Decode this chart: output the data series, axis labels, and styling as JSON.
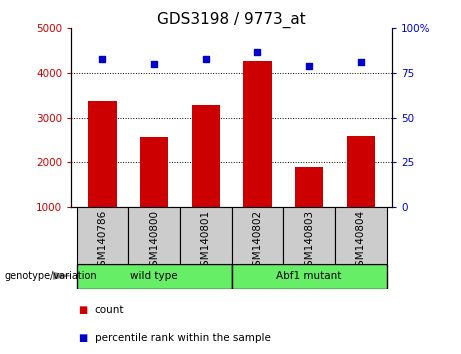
{
  "title": "GDS3198 / 9773_at",
  "categories": [
    "GSM140786",
    "GSM140800",
    "GSM140801",
    "GSM140802",
    "GSM140803",
    "GSM140804"
  ],
  "bar_values": [
    3380,
    2560,
    3280,
    4260,
    1900,
    2580
  ],
  "scatter_values": [
    83,
    80,
    83,
    87,
    79,
    81
  ],
  "bar_color": "#cc0000",
  "scatter_color": "#0000cc",
  "ylim_left": [
    1000,
    5000
  ],
  "ylim_right": [
    0,
    100
  ],
  "yticks_left": [
    1000,
    2000,
    3000,
    4000,
    5000
  ],
  "yticks_right": [
    0,
    25,
    50,
    75,
    100
  ],
  "yticklabels_right": [
    "0",
    "25",
    "50",
    "75",
    "100%"
  ],
  "grid_values": [
    2000,
    3000,
    4000
  ],
  "groups": [
    {
      "label": "wild type",
      "start": 0,
      "end": 3,
      "color": "#66ee66"
    },
    {
      "label": "Abf1 mutant",
      "start": 3,
      "end": 6,
      "color": "#66ee66"
    }
  ],
  "group_box_color": "#cccccc",
  "group_label_left": "genotype/variation",
  "legend_count_label": "count",
  "legend_percentile_label": "percentile rank within the sample",
  "title_fontsize": 11,
  "tick_fontsize": 7.5,
  "bar_bottom": 1000
}
